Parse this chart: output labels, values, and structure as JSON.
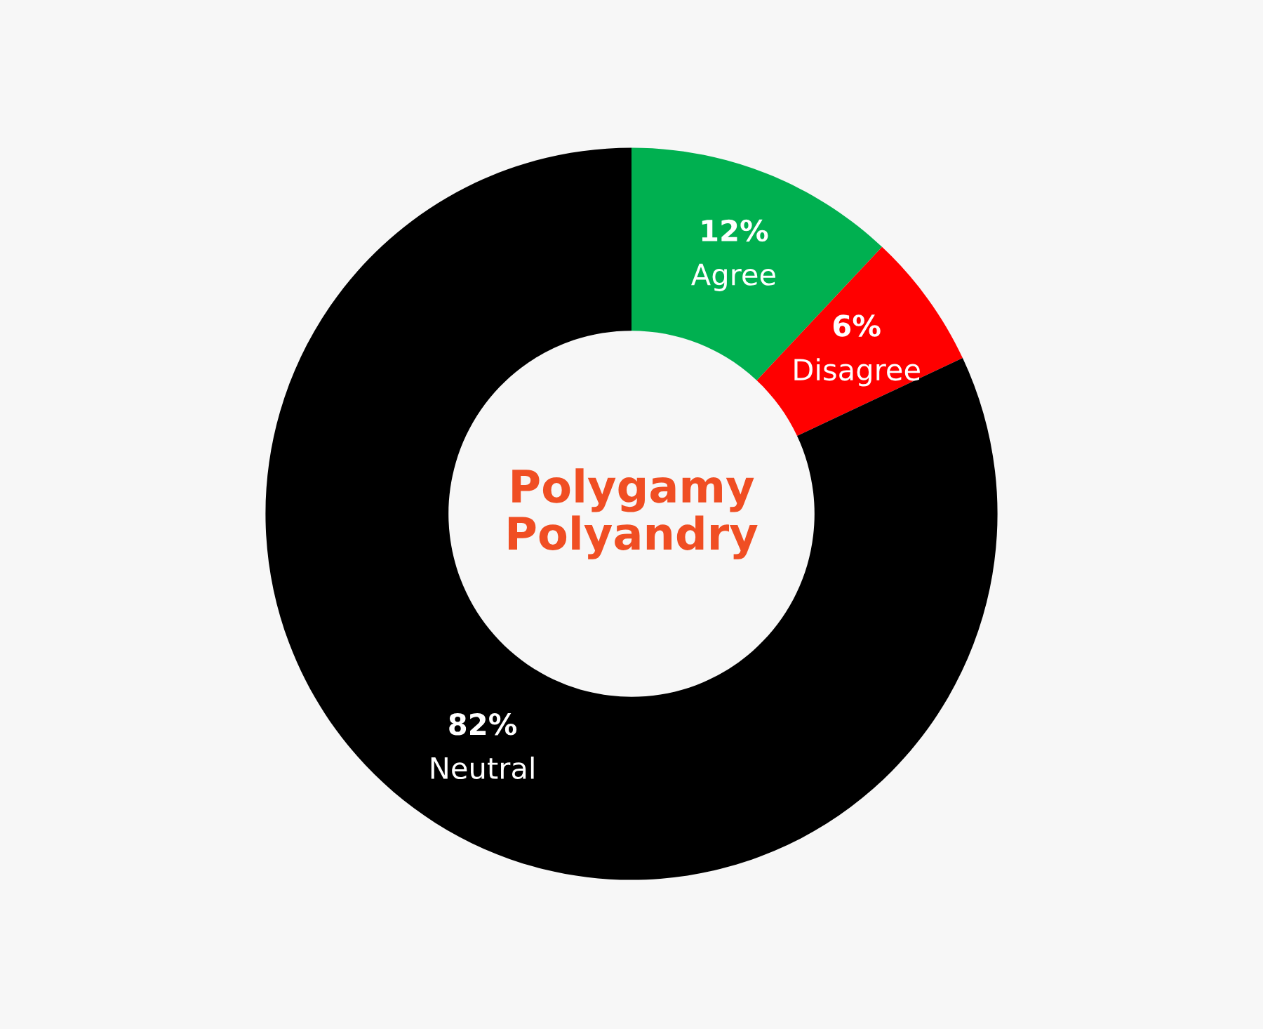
{
  "chart_data": {
    "type": "donut",
    "title": "Polygamy\nPolyandry",
    "categories": [
      "Agree",
      "Disagree",
      "Neutral"
    ],
    "values": [
      12,
      6,
      82
    ],
    "colors": [
      "#00b050",
      "#ff0000",
      "#000000"
    ],
    "value_labels": [
      "12%",
      "6%",
      "82%"
    ]
  }
}
